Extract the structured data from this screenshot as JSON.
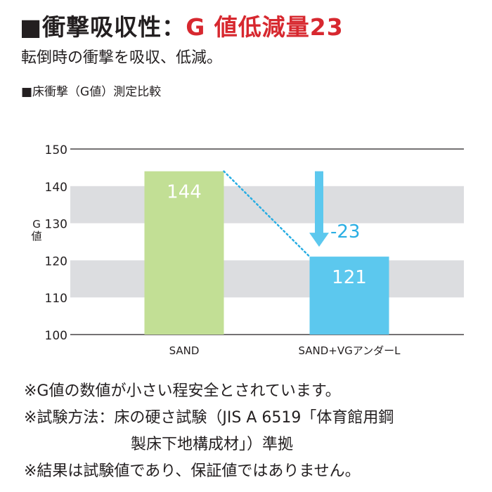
{
  "header": {
    "title_prefix": "■衝撃吸収性：",
    "title_accent": "G 値低減量23",
    "subtitle": "転倒時の衝撃を吸収、低減。",
    "chart_caption": "■床衝撃（G値）測定比較"
  },
  "colors": {
    "accent": "#d7282f",
    "bar_sand": "#c2df95",
    "bar_vg": "#5cc8ee",
    "band": "#dcdde0",
    "reduction_text": "#29aee3"
  },
  "chart_data": {
    "type": "bar",
    "ylabel": "G値",
    "ylim": [
      100,
      150
    ],
    "yticks": [
      100,
      110,
      120,
      130,
      140,
      150
    ],
    "shaded_bands": [
      [
        110,
        120
      ],
      [
        130,
        140
      ]
    ],
    "categories": [
      "SAND",
      "SAND+VGアンダーL"
    ],
    "values": [
      144,
      121
    ],
    "value_labels": [
      "144",
      "121"
    ],
    "reduction_label": "-23"
  },
  "notes": [
    "※G値の数値が小さい程安全とされています。",
    "※試験方法：床の硬さ試験（JIS A 6519「体育館用鋼",
    "製床下地構成材」）準拠",
    "※結果は試験値であり、保証値ではありません。"
  ]
}
